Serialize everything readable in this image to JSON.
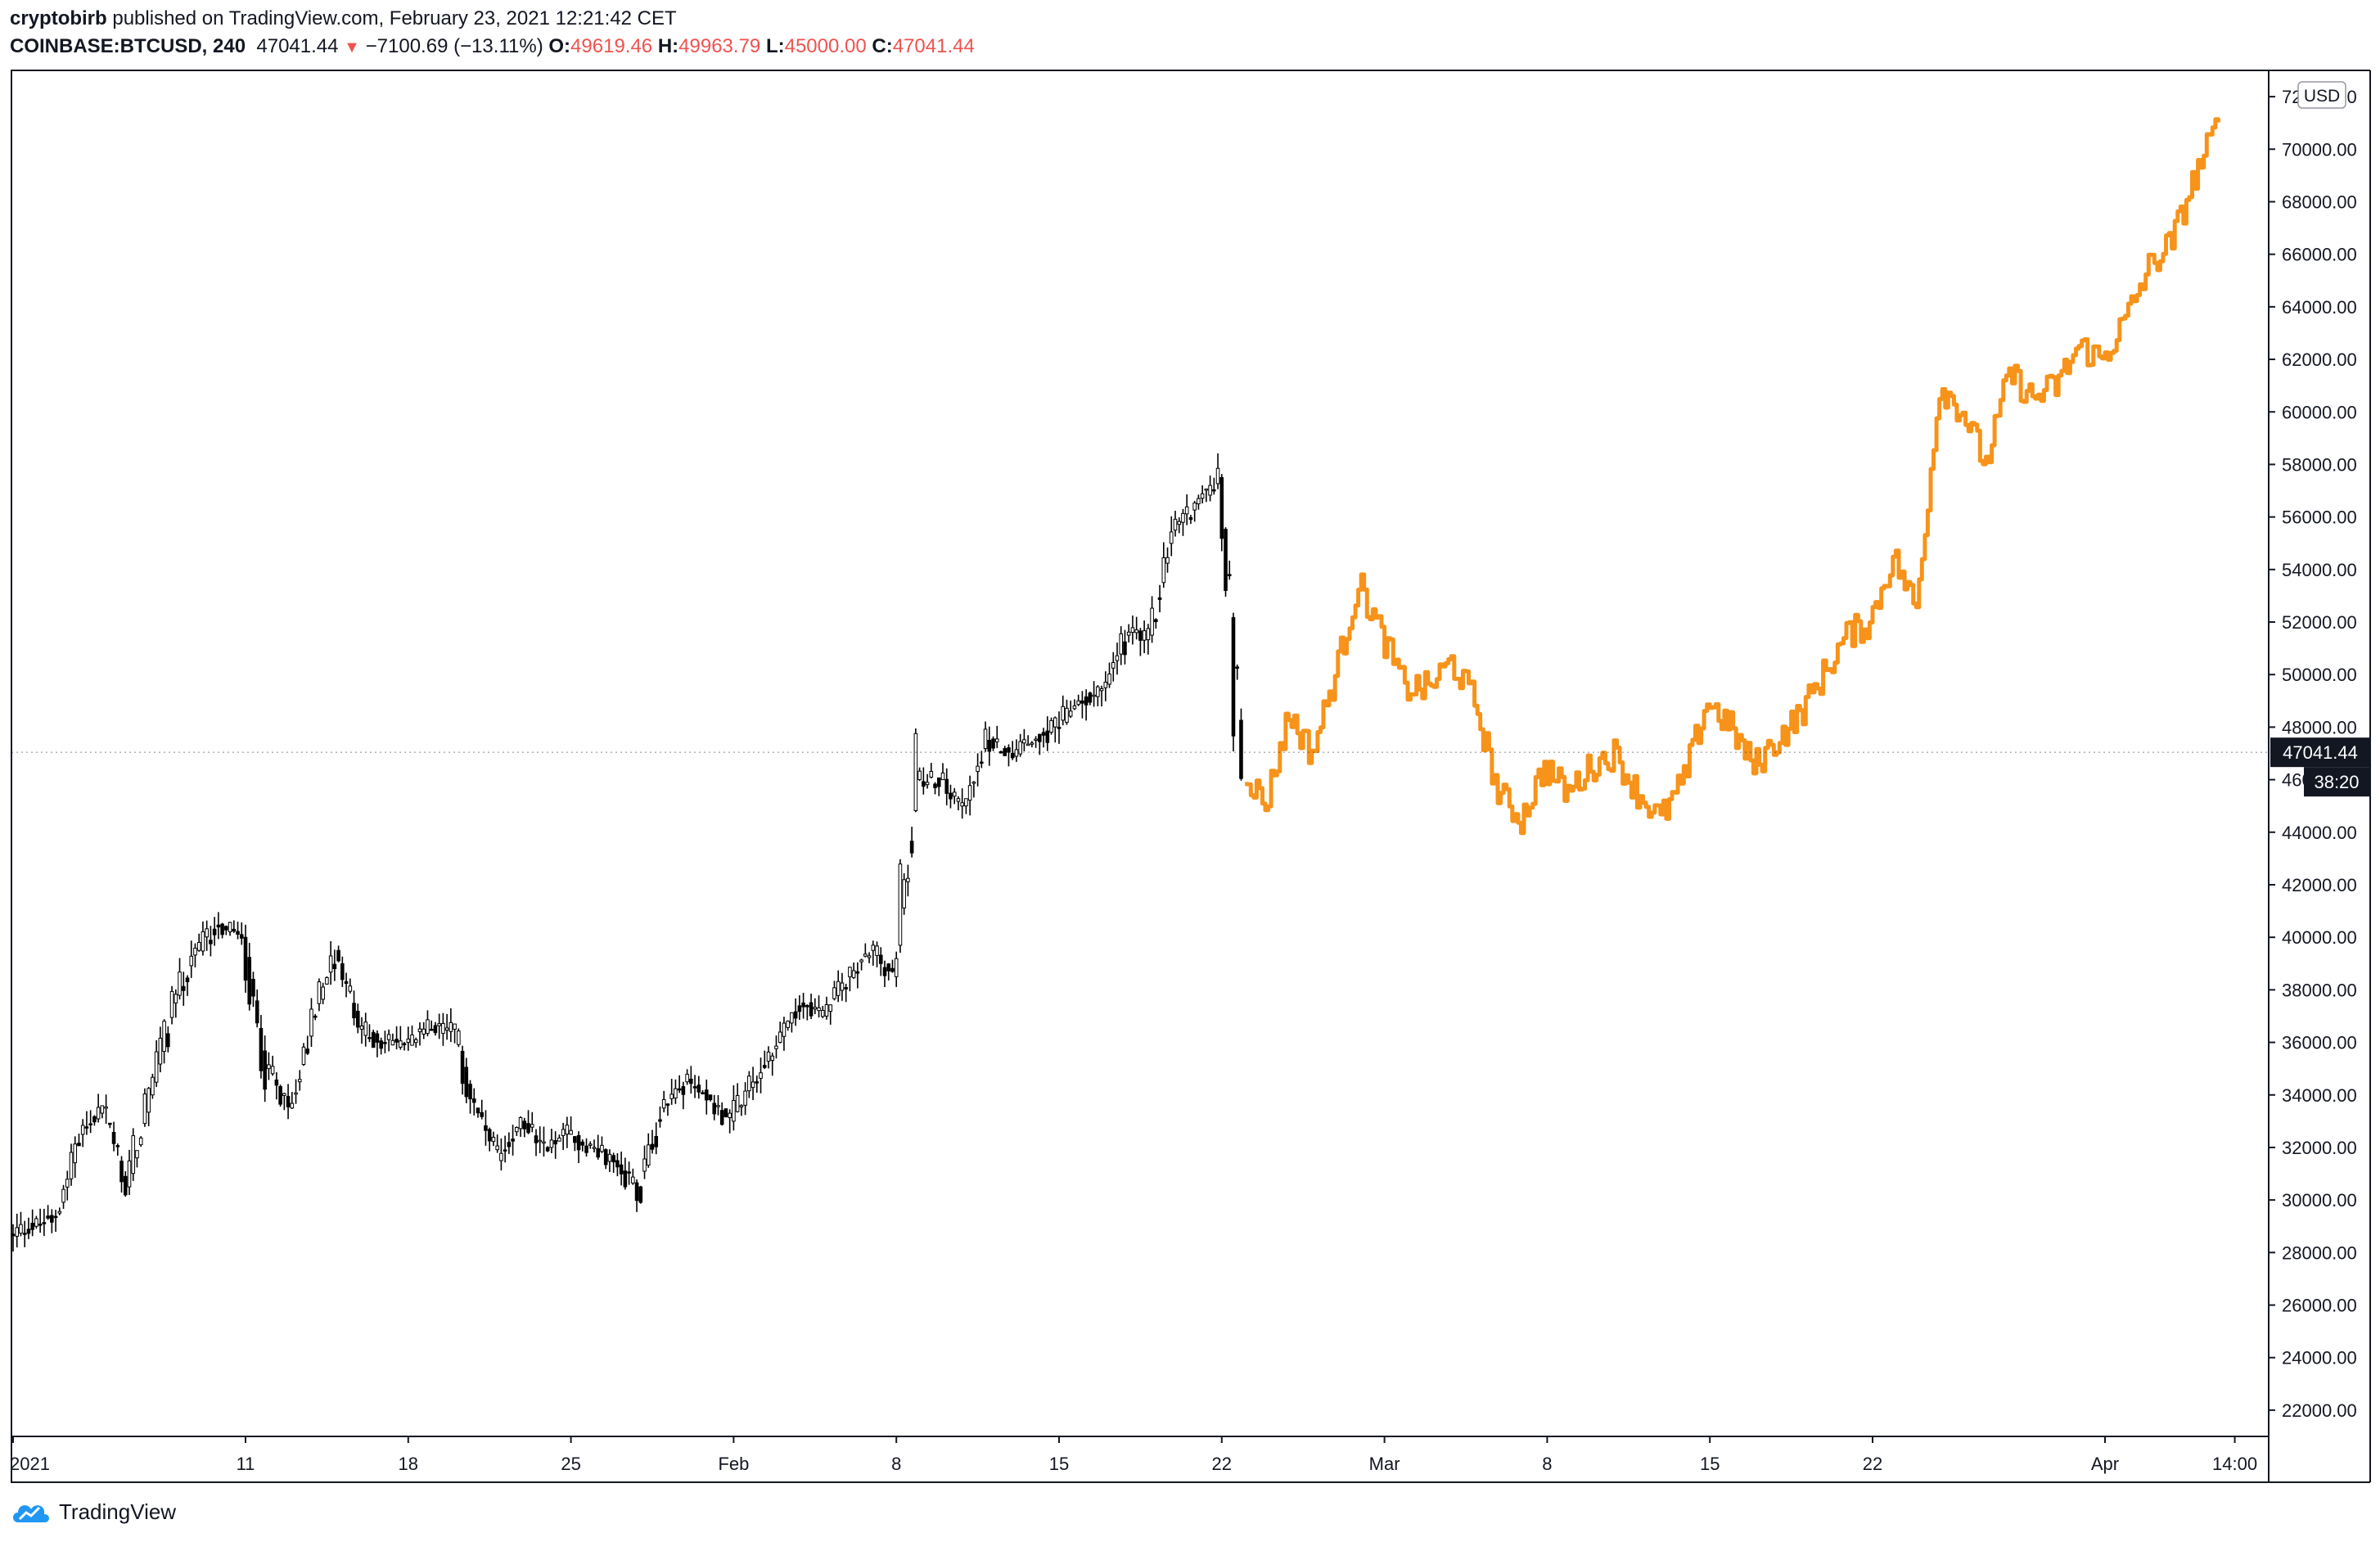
{
  "header": {
    "author": "cryptobirb",
    "published": "published on TradingView.com, February 23, 2021 12:21:42 CET",
    "symbol": "COINBASE:BTCUSD, 240",
    "last": "47041.44",
    "change": "−7100.69 (−13.11%)",
    "o_label": "O:",
    "o_value": "49619.46",
    "h_label": "H:",
    "h_value": "49963.79",
    "l_label": "L:",
    "l_value": "45000.00",
    "c_label": "C:",
    "c_value": "47041.44"
  },
  "brand": {
    "name": "TradingView",
    "icon": "tradingview-cloud-icon"
  },
  "colors": {
    "candles": "#000000",
    "projection": "#f7931a",
    "price_tag": "#131722",
    "down": "#ef5350",
    "axis": "#131722"
  },
  "chart_data": {
    "type": "line",
    "title": "",
    "currency": "USD",
    "ylim": [
      21000,
      73000
    ],
    "y_ticks": [
      "22000.00",
      "24000.00",
      "26000.00",
      "28000.00",
      "30000.00",
      "32000.00",
      "34000.00",
      "36000.00",
      "38000.00",
      "40000.00",
      "42000.00",
      "44000.00",
      "46000.00",
      "48000.00",
      "50000.00",
      "52000.00",
      "54000.00",
      "56000.00",
      "58000.00",
      "60000.00",
      "62000.00",
      "64000.00",
      "66000.00",
      "68000.00",
      "70000.00",
      "72000.00"
    ],
    "x_ticks": [
      {
        "label": "2021",
        "date": "2021-01-01"
      },
      {
        "label": "11",
        "date": "2021-01-11"
      },
      {
        "label": "18",
        "date": "2021-01-18"
      },
      {
        "label": "25",
        "date": "2021-01-25"
      },
      {
        "label": "Feb",
        "date": "2021-02-01"
      },
      {
        "label": "8",
        "date": "2021-02-08"
      },
      {
        "label": "15",
        "date": "2021-02-15"
      },
      {
        "label": "22",
        "date": "2021-02-22"
      },
      {
        "label": "Mar",
        "date": "2021-03-01"
      },
      {
        "label": "8",
        "date": "2021-03-08"
      },
      {
        "label": "15",
        "date": "2021-03-15"
      },
      {
        "label": "22",
        "date": "2021-03-22"
      },
      {
        "label": "Apr",
        "date": "2021-04-01"
      },
      {
        "label": "14:00",
        "date": "2021-04-06T14:00"
      }
    ],
    "last_price_label": "47041.44",
    "countdown_label": "38:20",
    "last_price": 47041.44,
    "series": [
      {
        "kind": "candlestick",
        "x": [
          "2021-01-01",
          "2021-01-02",
          "2021-01-03",
          "2021-01-04",
          "2021-01-05",
          "2021-01-06",
          "2021-01-07",
          "2021-01-08",
          "2021-01-09",
          "2021-01-10",
          "2021-01-11",
          "2021-01-12",
          "2021-01-13",
          "2021-01-14",
          "2021-01-15",
          "2021-01-16",
          "2021-01-17",
          "2021-01-18",
          "2021-01-19",
          "2021-01-20",
          "2021-01-21",
          "2021-01-22",
          "2021-01-23",
          "2021-01-24",
          "2021-01-25",
          "2021-01-26",
          "2021-01-27",
          "2021-01-28",
          "2021-01-29",
          "2021-01-30",
          "2021-01-31",
          "2021-02-01",
          "2021-02-02",
          "2021-02-03",
          "2021-02-04",
          "2021-02-05",
          "2021-02-06",
          "2021-02-07",
          "2021-02-08",
          "2021-02-09",
          "2021-02-10",
          "2021-02-11",
          "2021-02-12",
          "2021-02-13",
          "2021-02-14",
          "2021-02-15",
          "2021-02-16",
          "2021-02-17",
          "2021-02-18",
          "2021-02-19",
          "2021-02-20",
          "2021-02-21",
          "2021-02-22"
        ],
        "y": [
          29000,
          29500,
          32500,
          33500,
          30500,
          34000,
          37500,
          39500,
          40500,
          40000,
          35000,
          33500,
          37000,
          39500,
          36500,
          36000,
          36000,
          36500,
          36500,
          33500,
          31500,
          33000,
          32000,
          32500,
          32000,
          31500,
          30500,
          33500,
          34500,
          34000,
          33000,
          34500,
          36000,
          37500,
          37000,
          38500,
          39500,
          38500,
          46000,
          46000,
          45000,
          47500,
          47000,
          47500,
          48000,
          49000,
          49500,
          51500,
          51500,
          55500,
          56500,
          57500,
          46500
        ]
      },
      {
        "kind": "projection",
        "x": [
          "2021-02-23",
          "2021-02-24",
          "2021-02-25",
          "2021-02-26",
          "2021-02-27",
          "2021-02-28",
          "2021-03-01",
          "2021-03-02",
          "2021-03-03",
          "2021-03-04",
          "2021-03-05",
          "2021-03-06",
          "2021-03-07",
          "2021-03-08",
          "2021-03-09",
          "2021-03-10",
          "2021-03-11",
          "2021-03-12",
          "2021-03-13",
          "2021-03-14",
          "2021-03-15",
          "2021-03-16",
          "2021-03-17",
          "2021-03-18",
          "2021-03-19",
          "2021-03-20",
          "2021-03-21",
          "2021-03-22",
          "2021-03-23",
          "2021-03-24",
          "2021-03-25",
          "2021-03-26",
          "2021-03-27",
          "2021-03-28",
          "2021-03-29",
          "2021-03-30",
          "2021-03-31",
          "2021-04-01",
          "2021-04-02",
          "2021-04-03",
          "2021-04-04",
          "2021-04-05"
        ],
        "y": [
          45000,
          48500,
          47000,
          50000,
          53500,
          51500,
          49500,
          49500,
          50500,
          49000,
          45500,
          44500,
          46500,
          45500,
          46500,
          47000,
          45500,
          44500,
          46000,
          49000,
          48000,
          46500,
          47500,
          48500,
          50000,
          51500,
          52000,
          54500,
          52500,
          61000,
          60000,
          58000,
          61500,
          60500,
          61000,
          62500,
          62000,
          63500,
          65500,
          66500,
          69000,
          71000
        ]
      }
    ]
  }
}
